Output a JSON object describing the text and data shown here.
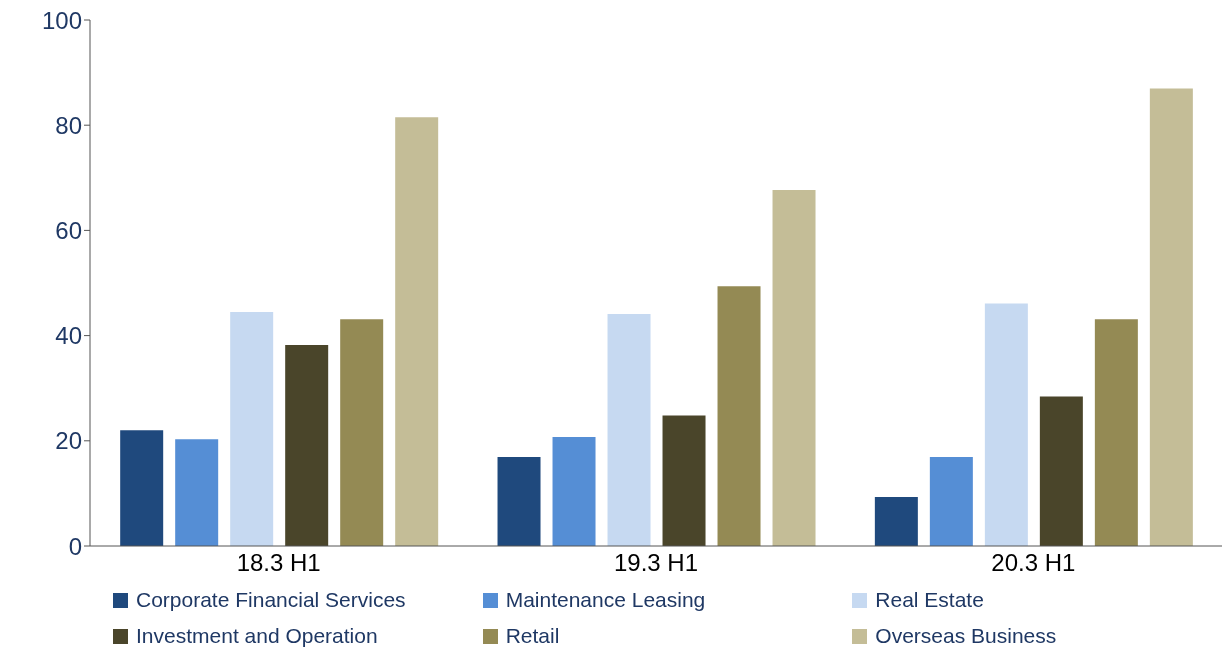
{
  "chart_data": {
    "type": "bar",
    "categories": [
      "18.3 H1",
      "19.3 H1",
      "20.3 H1"
    ],
    "series": [
      {
        "name": "Corporate Financial Services",
        "color": "#1f497d",
        "values": [
          22,
          16.9,
          9.3
        ]
      },
      {
        "name": "Maintenance Leasing",
        "color": "#558ed5",
        "values": [
          20.3,
          20.7,
          16.9
        ]
      },
      {
        "name": "Real Estate",
        "color": "#c6d9f1",
        "values": [
          44.5,
          44.1,
          46.1
        ]
      },
      {
        "name": "Investment and Operation",
        "color": "#4a452a",
        "values": [
          38.2,
          24.8,
          28.4
        ]
      },
      {
        "name": "Retail",
        "color": "#948a54",
        "values": [
          43.1,
          49.4,
          43.1
        ]
      },
      {
        "name": "Overseas Business",
        "color": "#c4bd97",
        "values": [
          81.5,
          67.7,
          87
        ]
      }
    ],
    "ylim": [
      0,
      100
    ],
    "yticks": [
      0,
      20,
      40,
      60,
      80,
      100
    ],
    "grid": false,
    "legend": "bottom"
  }
}
